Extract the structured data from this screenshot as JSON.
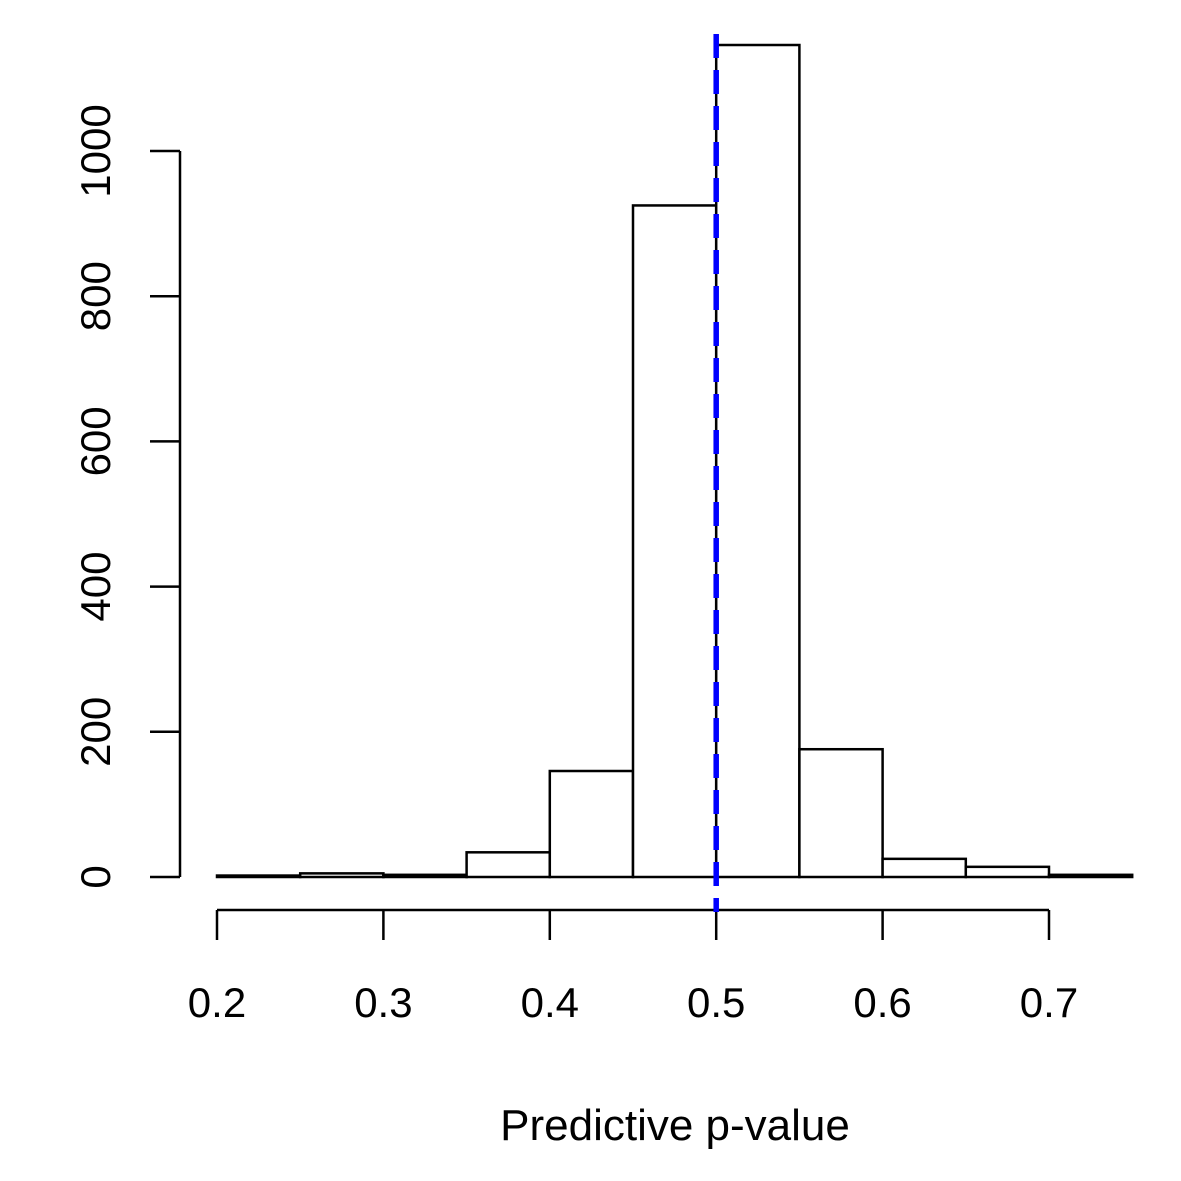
{
  "chart_data": {
    "type": "bar",
    "title": "",
    "xlabel": "Predictive p-value",
    "ylabel": "",
    "bins": [
      {
        "start": 0.2,
        "end": 0.25,
        "count": 2
      },
      {
        "start": 0.25,
        "end": 0.3,
        "count": 5
      },
      {
        "start": 0.3,
        "end": 0.35,
        "count": 3
      },
      {
        "start": 0.35,
        "end": 0.4,
        "count": 34
      },
      {
        "start": 0.4,
        "end": 0.45,
        "count": 146
      },
      {
        "start": 0.45,
        "end": 0.5,
        "count": 925
      },
      {
        "start": 0.5,
        "end": 0.55,
        "count": 1146
      },
      {
        "start": 0.55,
        "end": 0.6,
        "count": 176
      },
      {
        "start": 0.6,
        "end": 0.65,
        "count": 25
      },
      {
        "start": 0.65,
        "end": 0.7,
        "count": 14
      },
      {
        "start": 0.7,
        "end": 0.75,
        "count": 3
      }
    ],
    "xlim": [
      0.2,
      0.75
    ],
    "ylim": [
      0,
      1146
    ],
    "x_ticks": [
      "0.2",
      "0.3",
      "0.4",
      "0.5",
      "0.6",
      "0.7"
    ],
    "y_ticks": [
      "0",
      "200",
      "400",
      "600",
      "800",
      "1000"
    ],
    "reference_line": {
      "x": 0.5,
      "color": "#0000ff",
      "style": "dashed"
    },
    "bar_fill": "#ffffff",
    "bar_stroke": "#000000",
    "grid": false,
    "legend": "none"
  }
}
